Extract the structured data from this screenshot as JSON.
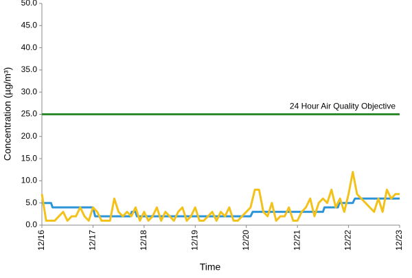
{
  "chart_data": {
    "type": "line",
    "x_label": "Time",
    "y_label": "Concentration (µg/m³)",
    "xlim": [
      0,
      168
    ],
    "xticks": [
      {
        "value": 0,
        "label": "12/16"
      },
      {
        "value": 24,
        "label": "12/17"
      },
      {
        "value": 48,
        "label": "12/18"
      },
      {
        "value": 72,
        "label": "12/19"
      },
      {
        "value": 96,
        "label": "12/20"
      },
      {
        "value": 120,
        "label": "12/21"
      },
      {
        "value": 144,
        "label": "12/22"
      },
      {
        "value": 168,
        "label": "12/23"
      }
    ],
    "ylim": [
      0,
      50
    ],
    "yticks": [
      {
        "value": 0,
        "label": "0.0"
      },
      {
        "value": 5,
        "label": "5.0"
      },
      {
        "value": 10,
        "label": "10.0"
      },
      {
        "value": 15,
        "label": "15.0"
      },
      {
        "value": 20,
        "label": "20.0"
      },
      {
        "value": 25,
        "label": "25.0"
      },
      {
        "value": 30,
        "label": "30.0"
      },
      {
        "value": 35,
        "label": "35.0"
      },
      {
        "value": 40,
        "label": "40.0"
      },
      {
        "value": 45,
        "label": "45.0"
      },
      {
        "value": 50,
        "label": "50.0"
      }
    ],
    "grid": false,
    "series": [
      {
        "color": "#f2c21b",
        "x": [
          0,
          2,
          4,
          6,
          8,
          10,
          12,
          14,
          16,
          18,
          20,
          22,
          24,
          26,
          28,
          30,
          32,
          34,
          36,
          38,
          40,
          42,
          44,
          46,
          48,
          50,
          52,
          54,
          56,
          58,
          60,
          62,
          64,
          66,
          68,
          70,
          72,
          74,
          76,
          78,
          80,
          82,
          84,
          86,
          88,
          90,
          92,
          94,
          96,
          98,
          100,
          102,
          104,
          106,
          108,
          110,
          112,
          114,
          116,
          118,
          120,
          122,
          124,
          126,
          128,
          130,
          132,
          134,
          136,
          138,
          140,
          142,
          144,
          146,
          148,
          150,
          152,
          154,
          156,
          158,
          160,
          162,
          164,
          166,
          168
        ],
        "values": [
          7,
          1,
          1,
          1,
          2,
          3,
          1,
          2,
          2,
          4,
          2,
          1,
          4,
          3,
          1,
          1,
          1,
          6,
          3,
          2,
          3,
          2,
          4,
          1,
          3,
          1,
          2,
          4,
          1,
          3,
          2,
          1,
          3,
          4,
          1,
          2,
          4,
          1,
          1,
          2,
          3,
          1,
          3,
          2,
          4,
          1,
          1,
          2,
          3,
          4,
          8,
          8,
          3,
          2,
          5,
          1,
          2,
          2,
          4,
          1,
          1,
          3,
          4,
          6,
          2,
          5,
          6,
          5,
          8,
          4,
          6,
          3,
          7,
          12,
          7,
          6,
          5,
          4,
          3,
          6,
          3,
          8,
          6,
          7,
          7
        ]
      },
      {
        "color": "#2b93d8",
        "x": [
          0,
          4.3,
          5,
          24,
          25,
          41.5,
          42.2,
          44,
          44.6,
          98,
          99,
          132,
          132.7,
          139,
          139.7,
          146,
          147,
          168
        ],
        "values": [
          5,
          5,
          4,
          4,
          2,
          2,
          3,
          3,
          2,
          2,
          3,
          3,
          4,
          4,
          5,
          5,
          6,
          6
        ]
      },
      {
        "name": "24 Hour Air Quality Objective",
        "color": "#2d8a2d",
        "x": [
          0,
          168
        ],
        "values": [
          25,
          25
        ]
      }
    ]
  }
}
